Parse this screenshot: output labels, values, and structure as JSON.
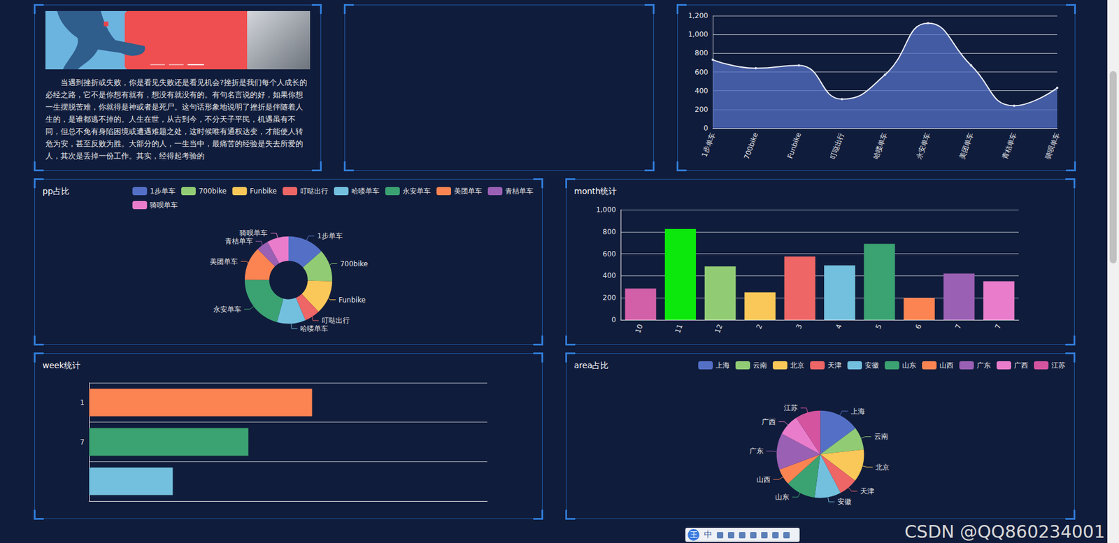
{
  "text_panel": {
    "paragraph": "当遇到挫折或失败，你是看见失败还是看见机会?挫折是我们每个人成长的必经之路，它不是你想有就有，想没有就没有的。有句名言说的好，如果你想一生摆脱苦难，你就得是神或者是死尸。这句话形象地说明了挫折是伴随着人生的，是谁都逃不掉的。人生在世，从古到今，不分天子平民，机遇虽有不同，但总不免有身陷困境或遭遇难题之处，这时候唯有通权达变，才能使人转危为安，甚至反败为胜。大部分的人，一生当中，最痛苦的经验是失去所爱的人，其次是丢掉一份工作。其实，经得起考验的"
  },
  "chart_data": [
    {
      "type": "area",
      "categories": [
        "1步单车",
        "700bike",
        "Funbike",
        "叮哒出行",
        "哈喽单车",
        "永安单车",
        "美团单车",
        "青桔单车",
        "骑呗单车"
      ],
      "values": [
        730,
        640,
        670,
        310,
        570,
        1120,
        670,
        240,
        430
      ],
      "color": "#5470c6",
      "marker": "circle",
      "ylim": [
        0,
        1200
      ],
      "yticks": [
        0,
        200,
        400,
        600,
        800,
        {
          "value": 1000,
          "label": "1,000"
        },
        {
          "value": 1200,
          "label": "1,200"
        }
      ],
      "grid": true
    },
    {
      "type": "donut",
      "title": "pp占比",
      "categories": [
        "1步单车",
        "700bike",
        "Funbike",
        "叮哒出行",
        "哈喽单车",
        "永安单车",
        "美团单车",
        "青桔单车",
        "骑呗单车"
      ],
      "values": [
        730,
        640,
        670,
        310,
        570,
        1120,
        670,
        240,
        430
      ],
      "colors": [
        "#5470c6",
        "#91cc75",
        "#fac858",
        "#ee6666",
        "#73c0de",
        "#3ba272",
        "#fc8452",
        "#9a60b4",
        "#ea7ccc"
      ],
      "legend": "top-right"
    },
    {
      "type": "bar",
      "title": "month统计",
      "categories": [
        "10",
        "11",
        "12",
        "2",
        "3",
        "4",
        "5",
        "6",
        "7",
        "7"
      ],
      "values": [
        285,
        825,
        485,
        250,
        575,
        495,
        690,
        200,
        420,
        350
      ],
      "colors": [
        "#d160a8",
        "#0ce80c",
        "#91cc75",
        "#fac858",
        "#ee6666",
        "#73c0de",
        "#3ba272",
        "#fc8452",
        "#9a60b4",
        "#ea7ccc"
      ],
      "ylim": [
        0,
        1000
      ],
      "yticks": [
        0,
        200,
        400,
        600,
        800,
        {
          "value": 1000,
          "label": "1,000"
        }
      ],
      "grid": true
    },
    {
      "type": "bar",
      "title": "week统计",
      "orientation": "horizontal",
      "categories": [
        "1",
        "7",
        null
      ],
      "values": [
        560,
        400,
        210
      ],
      "colors": [
        "#fc8452",
        "#3ba272",
        "#73c0de"
      ],
      "xlim": [
        0,
        1000
      ],
      "tick_labels": "y",
      "grid": true
    },
    {
      "type": "pie",
      "title": "area占比",
      "categories": [
        "上海",
        "云南",
        "北京",
        "天津",
        "安徽",
        "山东",
        "山西",
        "广东",
        "广西",
        "江苏"
      ],
      "values": [
        320,
        180,
        260,
        150,
        210,
        240,
        130,
        290,
        170,
        200
      ],
      "colors": [
        "#5470c6",
        "#91cc75",
        "#fac858",
        "#ee6666",
        "#73c0de",
        "#3ba272",
        "#fc8452",
        "#9a60b4",
        "#ea7ccc",
        "#d4549f"
      ],
      "legend": "top-right"
    }
  ],
  "watermark": "CSDN @QQ860234001",
  "ime_toolbar": [
    "王",
    "中"
  ]
}
